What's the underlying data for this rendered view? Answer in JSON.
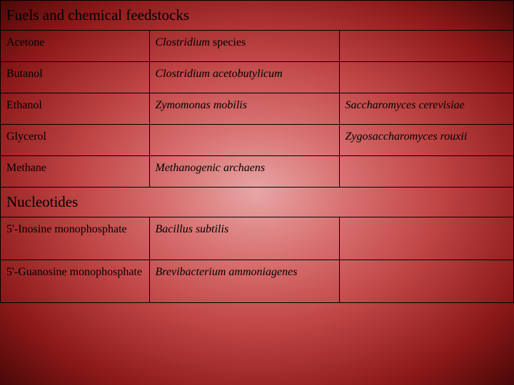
{
  "sections": {
    "fuels": {
      "header": "Fuels and chemical feedstocks",
      "rows": {
        "r0": {
          "c0": "Acetone",
          "c1_prefix": "Clostridium",
          "c1_suffix": " species",
          "c2": ""
        },
        "r1": {
          "c0": "Butanol",
          "c1": "Clostridium acetobutylicum",
          "c2": ""
        },
        "r2": {
          "c0": "Ethanol",
          "c1": "Zymomonas mobilis",
          "c2": "Saccharomyces cerevisiae"
        },
        "r3": {
          "c0": "Glycerol",
          "c1": "",
          "c2": "Zygosaccharomyces rouxii"
        },
        "r4": {
          "c0": "Methane",
          "c1": "Methanogenic archaens",
          "c2": ""
        }
      }
    },
    "nucleotides": {
      "header": "Nucleotides",
      "rows": {
        "r0": {
          "c0": "5'-Inosine monophosphate",
          "c1": "Bacillus subtilis",
          "c2": ""
        },
        "r1": {
          "c0": "5'-Guanosine monophosphate",
          "c1": "Brevibacterium ammoniagenes",
          "c2": ""
        }
      }
    }
  },
  "style": {
    "border_color": "#000000",
    "text_color": "#000000",
    "header_fontsize": 21,
    "cell_fontsize": 16,
    "col_widths_pct": [
      29,
      37,
      34
    ],
    "background_gradient": [
      "#e8a5a5",
      "#d87070",
      "#c04545",
      "#8b1818",
      "#4a0808"
    ]
  }
}
